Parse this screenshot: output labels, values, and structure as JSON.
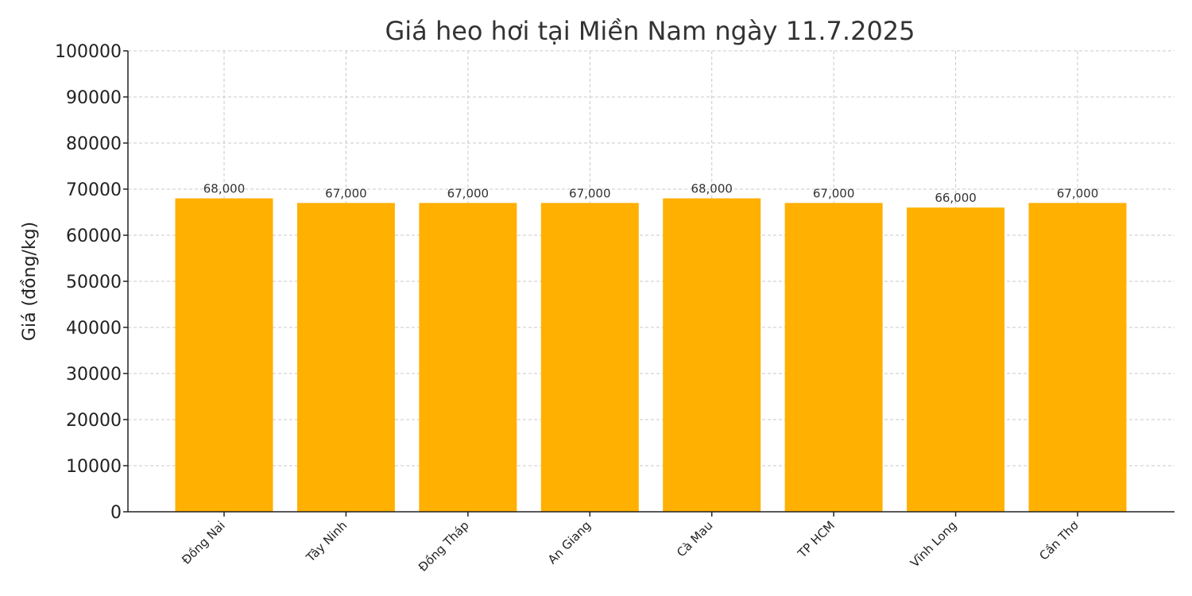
{
  "chart_data": {
    "type": "bar",
    "title": "Giá heo hơi tại Miền Nam ngày 11.7.2025",
    "xlabel": "",
    "ylabel": "Giá (đồng/kg)",
    "categories": [
      "Đồng Nai",
      "Tây Ninh",
      "Đồng Tháp",
      "An Giang",
      "Cà Mau",
      "TP HCM",
      "Vĩnh Long",
      "Cần Thơ"
    ],
    "values": [
      68000,
      67000,
      67000,
      67000,
      68000,
      67000,
      66000,
      67000
    ],
    "data_labels": [
      "68,000",
      "67,000",
      "67,000",
      "67,000",
      "68,000",
      "67,000",
      "66,000",
      "67,000"
    ],
    "ylim": [
      0,
      100000
    ],
    "yticks": [
      0,
      10000,
      20000,
      30000,
      40000,
      50000,
      60000,
      70000,
      80000,
      90000,
      100000
    ],
    "ytick_labels": [
      "0",
      "10000",
      "20000",
      "30000",
      "40000",
      "50000",
      "60000",
      "70000",
      "80000",
      "90000",
      "100000"
    ],
    "grid": true,
    "bar_color": "#FFB000"
  }
}
